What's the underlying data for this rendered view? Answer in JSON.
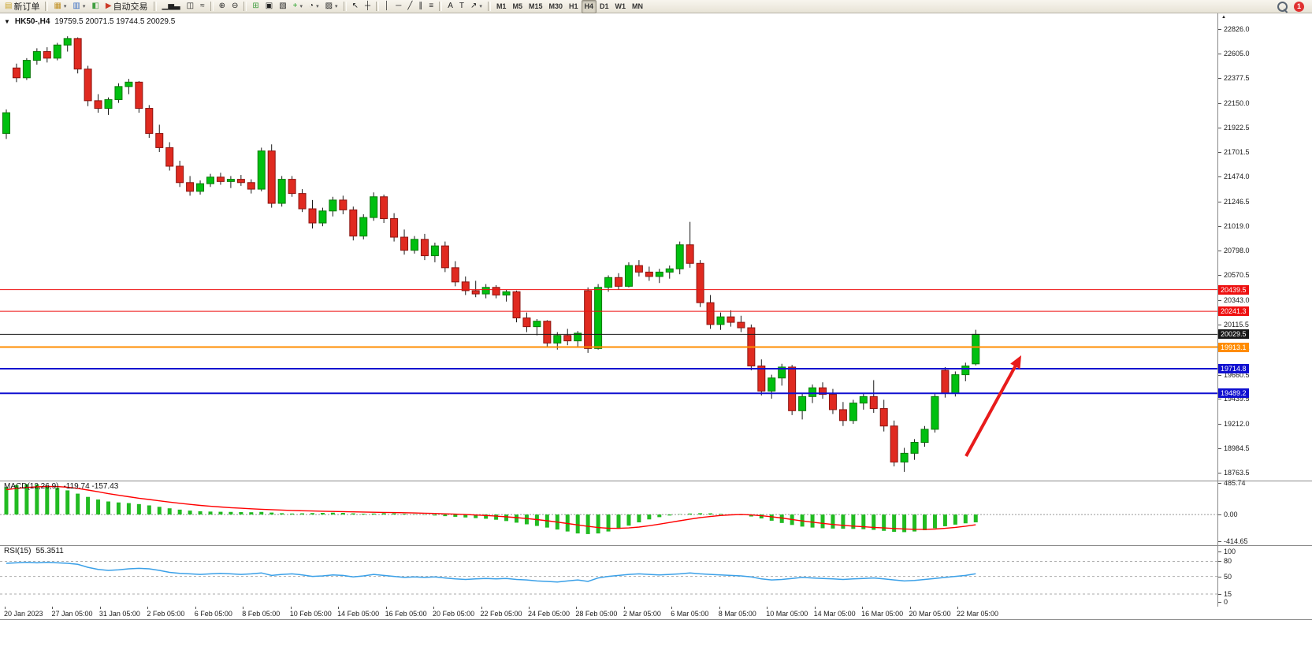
{
  "toolbar": {
    "notification_count": "1",
    "active_timeframe": "H4",
    "items": [
      {
        "name": "new-order-button",
        "label": "新订单",
        "glyph": "▤",
        "color": "#c9a227"
      },
      {
        "sep": true
      },
      {
        "name": "new-chart-icon",
        "glyph": "▦",
        "color": "#c08f20",
        "caret": true
      },
      {
        "name": "profiles-icon",
        "glyph": "▥",
        "color": "#3a6fc4",
        "caret": true
      },
      {
        "name": "data-window-icon",
        "glyph": "◧",
        "color": "#3f9e3f"
      },
      {
        "name": "autotrading-button",
        "label": "自动交易",
        "glyph": "▶",
        "color": "#cc3a28"
      },
      {
        "sep": true
      },
      {
        "name": "bar-chart-icon",
        "glyph": "▁▅▃"
      },
      {
        "name": "candlestick-chart-icon",
        "glyph": "◫"
      },
      {
        "name": "line-chart-icon",
        "glyph": "≈"
      },
      {
        "sep": true
      },
      {
        "name": "zoom-in-icon",
        "glyph": "⊕"
      },
      {
        "name": "zoom-out-icon",
        "glyph": "⊖"
      },
      {
        "sep": true
      },
      {
        "name": "tile-windows-icon",
        "glyph": "⊞",
        "color": "#3f9e3f"
      },
      {
        "name": "cascade-windows-icon",
        "glyph": "▣"
      },
      {
        "name": "arrange-windows-icon",
        "glyph": "▧"
      },
      {
        "name": "indicators-icon",
        "glyph": "+",
        "color": "#1d9e1d",
        "caret": true
      },
      {
        "name": "periods-icon",
        "glyph": "◔",
        "caret": true
      },
      {
        "name": "templates-icon",
        "glyph": "▨",
        "caret": true
      },
      {
        "sep": true
      },
      {
        "name": "cursor-icon",
        "glyph": "↖"
      },
      {
        "name": "crosshair-icon",
        "glyph": "┼"
      },
      {
        "sep": true
      },
      {
        "name": "vertical-line-icon",
        "glyph": "│"
      },
      {
        "name": "horizontal-line-icon",
        "glyph": "─"
      },
      {
        "name": "trendline-icon",
        "glyph": "╱"
      },
      {
        "name": "channel-icon",
        "glyph": "∥"
      },
      {
        "name": "fibonacci-icon",
        "glyph": "≡"
      },
      {
        "sep": true
      },
      {
        "name": "text-icon",
        "glyph": "A"
      },
      {
        "name": "label-icon",
        "glyph": "T"
      },
      {
        "name": "arrows-icon",
        "glyph": "↗",
        "caret": true
      },
      {
        "sep": true
      },
      {
        "name": "timeframe-m1",
        "label": "M1",
        "tf": true
      },
      {
        "name": "timeframe-m5",
        "label": "M5",
        "tf": true
      },
      {
        "name": "timeframe-m15",
        "label": "M15",
        "tf": true
      },
      {
        "name": "timeframe-m30",
        "label": "M30",
        "tf": true
      },
      {
        "name": "timeframe-h1",
        "label": "H1",
        "tf": true
      },
      {
        "name": "timeframe-h4",
        "label": "H4",
        "tf": true,
        "active": true
      },
      {
        "name": "timeframe-d1",
        "label": "D1",
        "tf": true
      },
      {
        "name": "timeframe-w1",
        "label": "W1",
        "tf": true
      },
      {
        "name": "timeframe-mn",
        "label": "MN",
        "tf": true
      }
    ]
  },
  "chart": {
    "collapse_glyph": "▼",
    "symbol_period": "HK50-,H4",
    "ohlc_line": "19759.5 20071.5 19744.5 20029.5"
  },
  "chart_data": [
    {
      "type": "candlestick",
      "title": "HK50-,H4",
      "symbol": "HK50-",
      "period": "H4",
      "last_ohlc": {
        "open": 19759.5,
        "high": 20071.5,
        "low": 19744.5,
        "close": 20029.5
      },
      "ylim": [
        18690,
        22970
      ],
      "up_color": "#00c010",
      "down_color": "#e02a20",
      "up_border": "#0a7a0a",
      "down_border": "#8c1410",
      "y_axis_ticks": [
        22826.0,
        22605.0,
        22377.5,
        22150.0,
        21922.5,
        21701.5,
        21474.0,
        21246.5,
        21019.0,
        20798.0,
        20570.5,
        20343.0,
        20115.5,
        19888.0,
        19660.5,
        19439.5,
        19212.0,
        18984.5,
        18763.5
      ],
      "x_axis_labels": [
        "20 Jan 2023",
        "27 Jan 05:00",
        "31 Jan 05:00",
        "2 Feb 05:00",
        "6 Feb 05:00",
        "8 Feb 05:00",
        "10 Feb 05:00",
        "14 Feb 05:00",
        "16 Feb 05:00",
        "20 Feb 05:00",
        "22 Feb 05:00",
        "24 Feb 05:00",
        "28 Feb 05:00",
        "2 Mar 05:00",
        "6 Mar 05:00",
        "8 Mar 05:00",
        "10 Mar 05:00",
        "14 Mar 05:00",
        "16 Mar 05:00",
        "20 Mar 05:00",
        "22 Mar 05:00"
      ],
      "h_lines": [
        {
          "price": 20439.5,
          "color": "#ee1010",
          "width": 1
        },
        {
          "price": 20241.3,
          "color": "#ee1010",
          "width": 1
        },
        {
          "price": 20029.5,
          "color": "#181818",
          "width": 1,
          "current": true
        },
        {
          "price": 19913.1,
          "color": "#ff8c00",
          "width": 2
        },
        {
          "price": 19714.8,
          "color": "#1010d0",
          "width": 2
        },
        {
          "price": 19489.2,
          "color": "#1010d0",
          "width": 2
        }
      ],
      "annotations": [
        {
          "type": "arrow",
          "color": "#e81b1b",
          "from": [
            1226,
            562
          ],
          "to": [
            1296,
            434
          ]
        }
      ],
      "candles": [
        [
          21870,
          22090,
          21820,
          22060
        ],
        [
          22470,
          22510,
          22340,
          22380
        ],
        [
          22380,
          22560,
          22360,
          22540
        ],
        [
          22540,
          22650,
          22500,
          22620
        ],
        [
          22620,
          22660,
          22520,
          22560
        ],
        [
          22560,
          22700,
          22540,
          22680
        ],
        [
          22680,
          22760,
          22620,
          22740
        ],
        [
          22740,
          22750,
          22420,
          22460
        ],
        [
          22460,
          22490,
          22120,
          22170
        ],
        [
          22170,
          22230,
          22060,
          22100
        ],
        [
          22100,
          22200,
          22040,
          22180
        ],
        [
          22180,
          22330,
          22150,
          22300
        ],
        [
          22300,
          22370,
          22230,
          22340
        ],
        [
          22340,
          22350,
          22060,
          22100
        ],
        [
          22100,
          22130,
          21830,
          21870
        ],
        [
          21870,
          21950,
          21700,
          21740
        ],
        [
          21740,
          21790,
          21530,
          21570
        ],
        [
          21570,
          21620,
          21380,
          21420
        ],
        [
          21420,
          21480,
          21300,
          21340
        ],
        [
          21340,
          21440,
          21310,
          21410
        ],
        [
          21410,
          21500,
          21380,
          21470
        ],
        [
          21470,
          21510,
          21400,
          21430
        ],
        [
          21430,
          21480,
          21370,
          21450
        ],
        [
          21450,
          21490,
          21390,
          21420
        ],
        [
          21420,
          21450,
          21320,
          21360
        ],
        [
          21360,
          21740,
          21340,
          21710
        ],
        [
          21710,
          21770,
          21190,
          21230
        ],
        [
          21230,
          21480,
          21200,
          21450
        ],
        [
          21450,
          21480,
          21290,
          21320
        ],
        [
          21320,
          21360,
          21150,
          21180
        ],
        [
          21180,
          21260,
          21000,
          21050
        ],
        [
          21050,
          21190,
          21020,
          21160
        ],
        [
          21160,
          21290,
          21110,
          21260
        ],
        [
          21260,
          21300,
          21130,
          21170
        ],
        [
          21170,
          21200,
          20890,
          20930
        ],
        [
          20930,
          21130,
          20900,
          21100
        ],
        [
          21100,
          21330,
          21070,
          21290
        ],
        [
          21290,
          21310,
          21050,
          21090
        ],
        [
          21090,
          21140,
          20880,
          20920
        ],
        [
          20920,
          20990,
          20760,
          20800
        ],
        [
          20800,
          20930,
          20770,
          20900
        ],
        [
          20900,
          20950,
          20710,
          20750
        ],
        [
          20750,
          20870,
          20690,
          20840
        ],
        [
          20840,
          20880,
          20600,
          20640
        ],
        [
          20640,
          20700,
          20470,
          20510
        ],
        [
          20510,
          20560,
          20390,
          20430
        ],
        [
          20430,
          20520,
          20370,
          20400
        ],
        [
          20400,
          20490,
          20360,
          20460
        ],
        [
          20460,
          20480,
          20360,
          20390
        ],
        [
          20390,
          20440,
          20330,
          20420
        ],
        [
          20420,
          20430,
          20140,
          20180
        ],
        [
          20180,
          20230,
          20050,
          20100
        ],
        [
          20100,
          20170,
          20020,
          20150
        ],
        [
          20150,
          20160,
          19910,
          19950
        ],
        [
          19950,
          20050,
          19890,
          20020
        ],
        [
          20020,
          20080,
          19930,
          19970
        ],
        [
          19970,
          20060,
          19920,
          20040
        ],
        [
          20430,
          20460,
          19860,
          19900
        ],
        [
          19900,
          20490,
          19890,
          20460
        ],
        [
          20460,
          20570,
          20420,
          20550
        ],
        [
          20550,
          20590,
          20440,
          20470
        ],
        [
          20470,
          20690,
          20460,
          20660
        ],
        [
          20660,
          20710,
          20560,
          20600
        ],
        [
          20600,
          20650,
          20520,
          20560
        ],
        [
          20560,
          20630,
          20500,
          20600
        ],
        [
          20600,
          20660,
          20540,
          20630
        ],
        [
          20630,
          20880,
          20580,
          20850
        ],
        [
          20850,
          21060,
          20640,
          20680
        ],
        [
          20680,
          20710,
          20280,
          20320
        ],
        [
          20320,
          20390,
          20080,
          20120
        ],
        [
          20120,
          20230,
          20070,
          20190
        ],
        [
          20190,
          20250,
          20100,
          20140
        ],
        [
          20140,
          20200,
          20050,
          20090
        ],
        [
          20090,
          20120,
          19700,
          19740
        ],
        [
          19740,
          19800,
          19470,
          19510
        ],
        [
          19510,
          19660,
          19440,
          19630
        ],
        [
          19630,
          19760,
          19560,
          19730
        ],
        [
          19730,
          19750,
          19290,
          19330
        ],
        [
          19330,
          19490,
          19250,
          19460
        ],
        [
          19460,
          19570,
          19400,
          19540
        ],
        [
          19540,
          19590,
          19440,
          19480
        ],
        [
          19480,
          19530,
          19300,
          19340
        ],
        [
          19340,
          19410,
          19190,
          19240
        ],
        [
          19240,
          19430,
          19210,
          19400
        ],
        [
          19400,
          19490,
          19340,
          19460
        ],
        [
          19460,
          19610,
          19310,
          19350
        ],
        [
          19350,
          19430,
          19140,
          19190
        ],
        [
          19190,
          19240,
          18820,
          18860
        ],
        [
          18860,
          18990,
          18770,
          18940
        ],
        [
          18940,
          19070,
          18880,
          19040
        ],
        [
          19040,
          19190,
          19000,
          19160
        ],
        [
          19160,
          19490,
          19130,
          19460
        ],
        [
          19700,
          19730,
          19450,
          19490
        ],
        [
          19490,
          19690,
          19460,
          19660
        ],
        [
          19660,
          19770,
          19600,
          19740
        ],
        [
          19759.5,
          20071.5,
          19744.5,
          20029.5
        ]
      ]
    },
    {
      "type": "macd-histogram",
      "label": "MACD(12,26,9)",
      "values_display": "-119.74 -157.43",
      "ylim": [
        -470,
        520
      ],
      "y_ticks": [
        485.74,
        0.0,
        -414.65
      ],
      "histogram_color": "#22bb22",
      "signal_color": "#ff0000",
      "histogram": [
        420,
        450,
        465,
        460,
        440,
        410,
        370,
        320,
        270,
        230,
        200,
        185,
        175,
        160,
        140,
        118,
        95,
        75,
        60,
        50,
        45,
        42,
        40,
        38,
        35,
        40,
        30,
        20,
        15,
        18,
        22,
        25,
        28,
        25,
        18,
        12,
        15,
        20,
        18,
        12,
        5,
        -5,
        -15,
        -25,
        -35,
        -45,
        -55,
        -65,
        -80,
        -100,
        -125,
        -150,
        -175,
        -200,
        -230,
        -260,
        -290,
        -300,
        -290,
        -260,
        -220,
        -170,
        -120,
        -75,
        -40,
        -15,
        5,
        15,
        20,
        18,
        10,
        0,
        -10,
        -30,
        -60,
        -95,
        -130,
        -160,
        -185,
        -200,
        -210,
        -215,
        -218,
        -220,
        -225,
        -235,
        -250,
        -265,
        -270,
        -260,
        -240,
        -210,
        -180,
        -155,
        -135,
        -119.74
      ],
      "signal": [
        380,
        400,
        415,
        425,
        430,
        428,
        418,
        400,
        375,
        348,
        320,
        295,
        272,
        250,
        230,
        210,
        190,
        172,
        155,
        140,
        127,
        115,
        105,
        96,
        88,
        81,
        75,
        69,
        63,
        58,
        54,
        50,
        47,
        44,
        41,
        38,
        35,
        32,
        30,
        27,
        24,
        20,
        16,
        11,
        6,
        0,
        -7,
        -15,
        -24,
        -35,
        -48,
        -62,
        -78,
        -96,
        -116,
        -138,
        -160,
        -182,
        -200,
        -210,
        -212,
        -206,
        -192,
        -172,
        -148,
        -122,
        -96,
        -70,
        -48,
        -30,
        -15,
        -5,
        0,
        -6,
        -18,
        -34,
        -54,
        -76,
        -98,
        -118,
        -136,
        -152,
        -166,
        -178,
        -188,
        -197,
        -206,
        -214,
        -221,
        -226,
        -227,
        -222,
        -212,
        -197,
        -179,
        -157.43
      ]
    },
    {
      "type": "line",
      "label": "RSI(15)",
      "value_display": "55.3511",
      "ylim": [
        -10,
        112
      ],
      "y_ticks": [
        100,
        80,
        50,
        15,
        0
      ],
      "levels": [
        80,
        50,
        15
      ],
      "line_color": "#3aa0e8",
      "values": [
        76,
        77,
        78,
        77,
        78,
        77,
        76,
        74,
        68,
        64,
        62,
        63,
        65,
        66,
        65,
        62,
        58,
        56,
        55,
        54,
        55,
        56,
        55,
        54,
        55,
        57,
        52,
        54,
        55,
        53,
        50,
        51,
        53,
        52,
        49,
        51,
        54,
        52,
        50,
        48,
        49,
        48,
        49,
        47,
        45,
        44,
        45,
        46,
        45,
        46,
        44,
        43,
        41,
        40,
        39,
        41,
        43,
        40,
        47,
        50,
        52,
        54,
        55,
        54,
        53,
        54,
        55,
        57,
        55,
        54,
        53,
        52,
        51,
        49,
        45,
        43,
        44,
        46,
        48,
        47,
        46,
        45,
        44,
        45,
        46,
        47,
        45,
        43,
        41,
        42,
        44,
        46,
        48,
        50,
        52,
        55.35
      ]
    }
  ]
}
